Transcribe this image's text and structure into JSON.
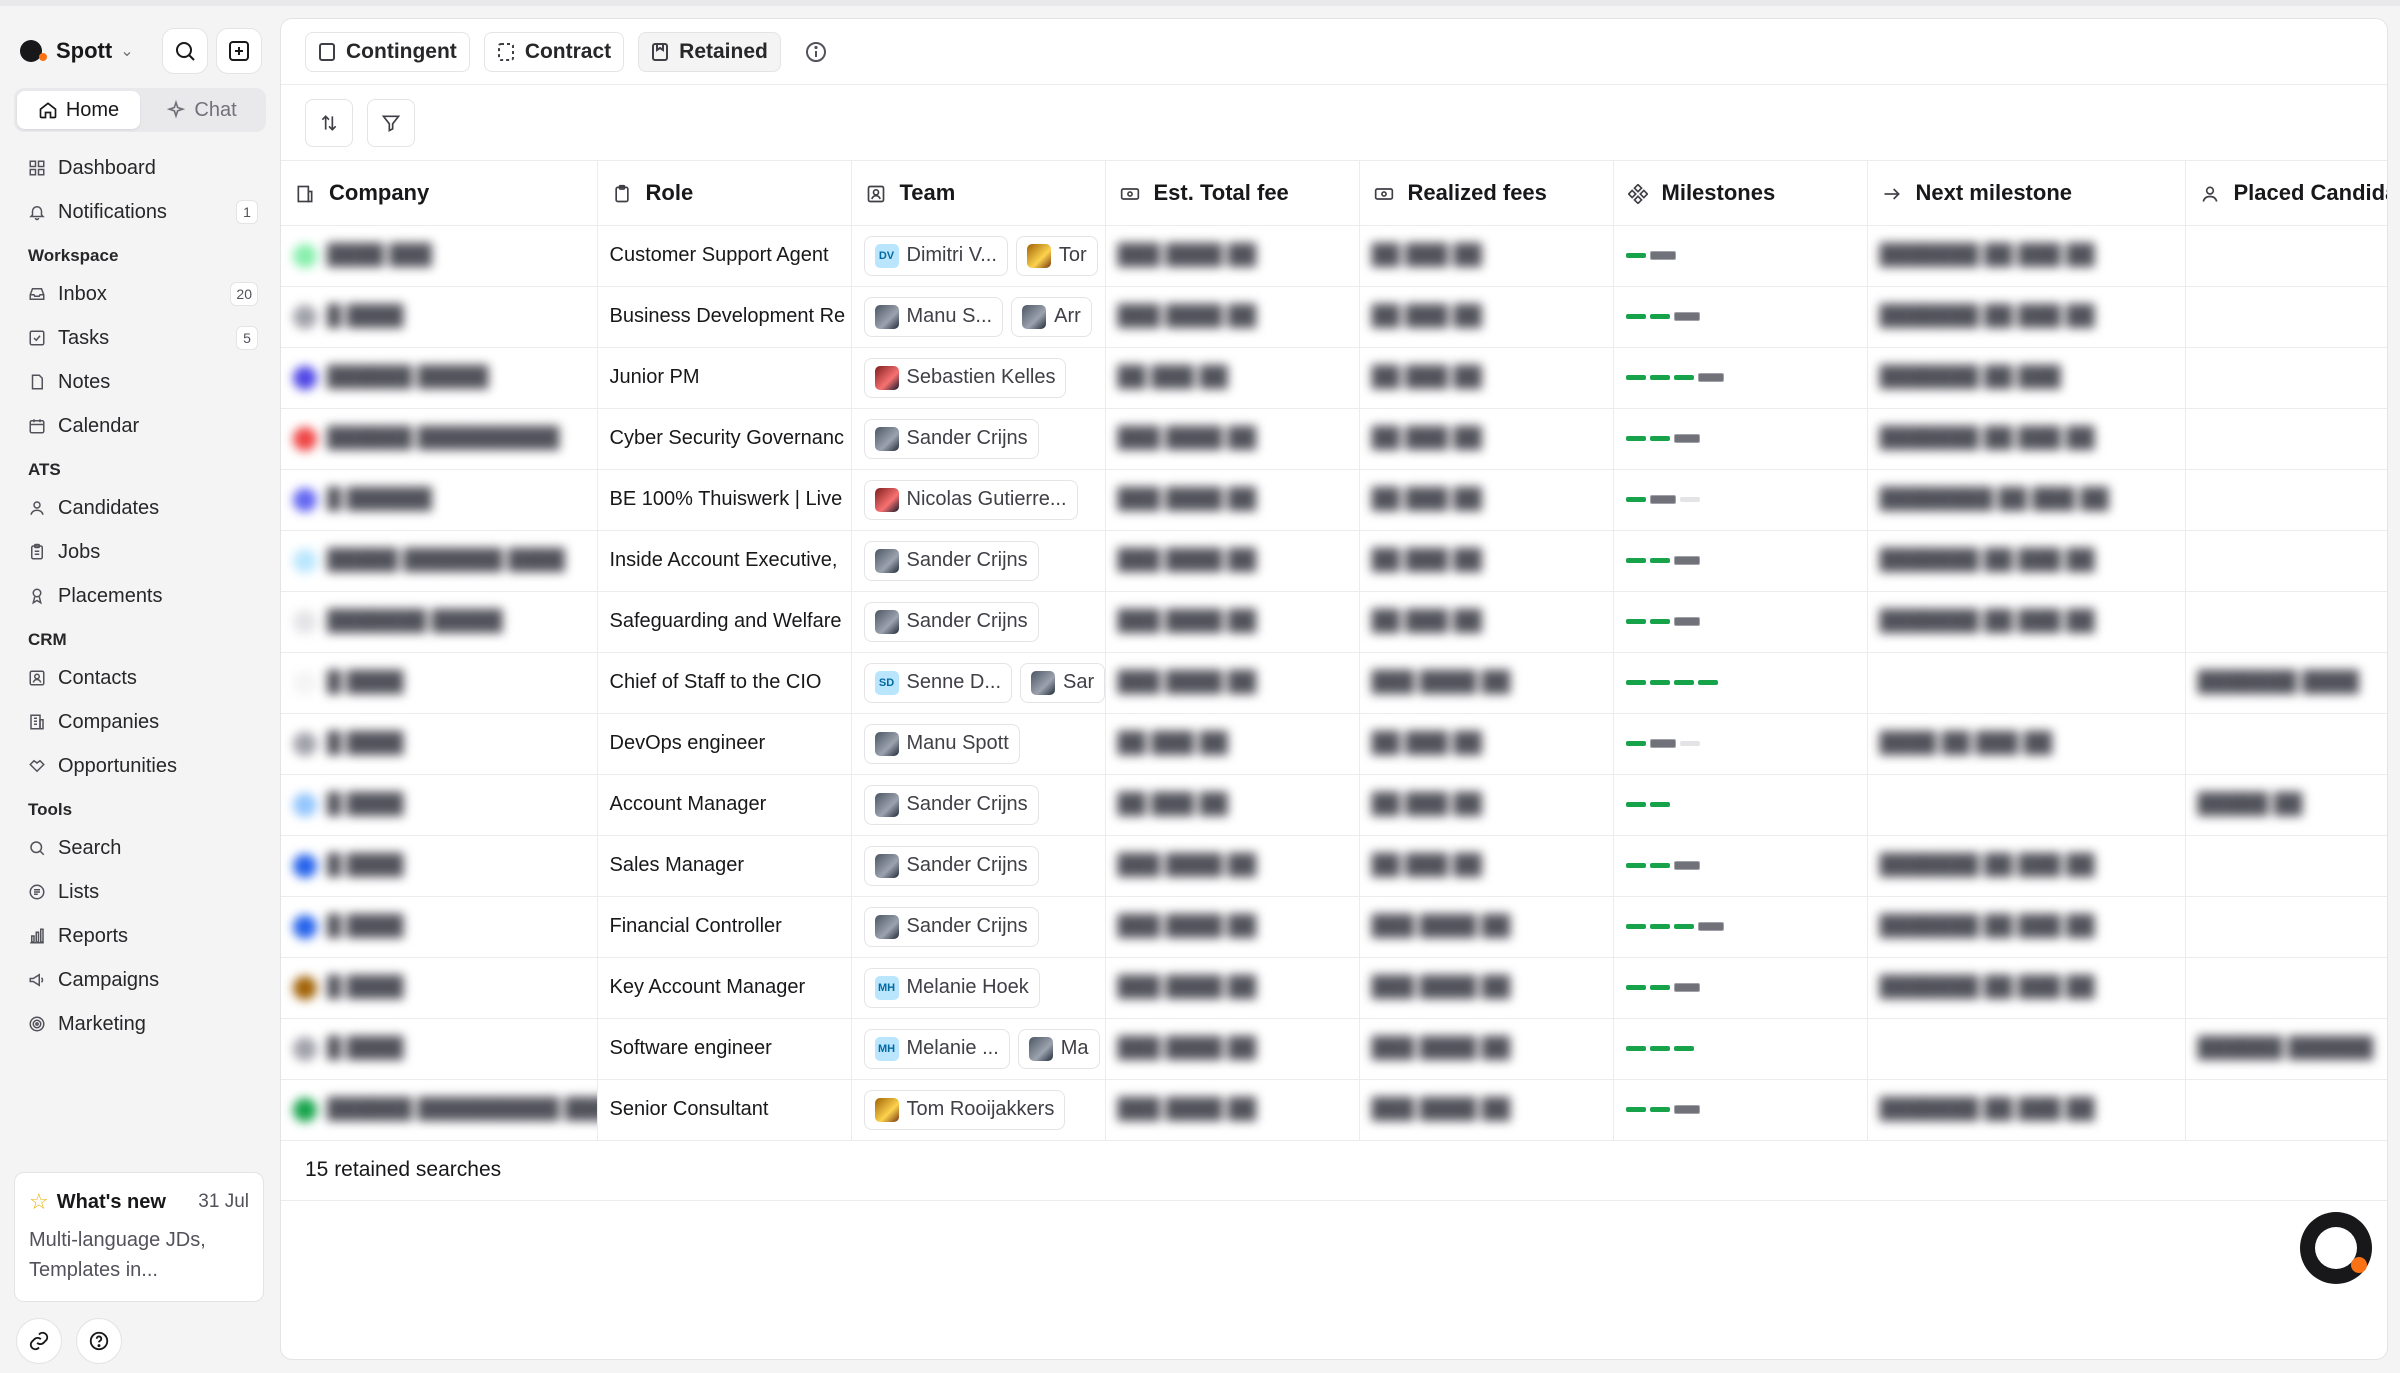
{
  "app": {
    "name": "Spott"
  },
  "sidebar": {
    "mode_tabs": [
      {
        "label": "Home",
        "icon": "home-icon",
        "active": true
      },
      {
        "label": "Chat",
        "icon": "sparkle-icon",
        "active": false
      }
    ],
    "top_items": [
      {
        "label": "Dashboard",
        "icon": "grid-icon"
      },
      {
        "label": "Notifications",
        "icon": "bell-icon",
        "badge": "1"
      }
    ],
    "sections": [
      {
        "title": "Workspace",
        "items": [
          {
            "label": "Inbox",
            "icon": "inbox-icon",
            "badge": "20"
          },
          {
            "label": "Tasks",
            "icon": "checkbox-icon",
            "badge": "5"
          },
          {
            "label": "Notes",
            "icon": "note-icon"
          },
          {
            "label": "Calendar",
            "icon": "calendar-icon"
          }
        ]
      },
      {
        "title": "ATS",
        "items": [
          {
            "label": "Candidates",
            "icon": "user-icon"
          },
          {
            "label": "Jobs",
            "icon": "clipboard-icon"
          },
          {
            "label": "Placements",
            "icon": "award-icon"
          }
        ]
      },
      {
        "title": "CRM",
        "items": [
          {
            "label": "Contacts",
            "icon": "contact-icon"
          },
          {
            "label": "Companies",
            "icon": "building-icon"
          },
          {
            "label": "Opportunities",
            "icon": "handshake-icon"
          }
        ]
      },
      {
        "title": "Tools",
        "items": [
          {
            "label": "Search",
            "icon": "search-icon"
          },
          {
            "label": "Lists",
            "icon": "list-icon"
          },
          {
            "label": "Reports",
            "icon": "chart-icon"
          },
          {
            "label": "Campaigns",
            "icon": "megaphone-icon"
          },
          {
            "label": "Marketing",
            "icon": "target-icon"
          }
        ]
      }
    ],
    "whats_new": {
      "title": "What's new",
      "date": "31 Jul",
      "body": "Multi-language JDs, Templates in..."
    }
  },
  "tabs": [
    {
      "label": "Contingent",
      "icon": "doc-icon",
      "active": false
    },
    {
      "label": "Contract",
      "icon": "dashed-doc-icon",
      "active": false
    },
    {
      "label": "Retained",
      "icon": "bookmark-doc-icon",
      "active": true
    }
  ],
  "table": {
    "columns": [
      {
        "label": "Company",
        "icon": "building-icon"
      },
      {
        "label": "Role",
        "icon": "clipboard-icon"
      },
      {
        "label": "Team",
        "icon": "team-icon"
      },
      {
        "label": "Est. Total fee",
        "icon": "money-icon"
      },
      {
        "label": "Realized fees",
        "icon": "money-icon"
      },
      {
        "label": "Milestones",
        "icon": "milestone-icon"
      },
      {
        "label": "Next milestone",
        "icon": "arrow-right-icon"
      },
      {
        "label": "Placed Candida",
        "icon": "user-icon"
      }
    ],
    "rows": [
      {
        "company": "████ ███",
        "company_color": "#86efac",
        "role": "Customer Support Agent",
        "team": [
          {
            "name": "Dimitri V...",
            "avatar": "DV"
          },
          {
            "name": "Tor",
            "avatar": "photo-warm"
          }
        ],
        "est_fee": "███ ████ ██",
        "realized": "██ ███ ██",
        "done": 1,
        "current": true,
        "empty": 0,
        "next": "███████  ██ ███ ██",
        "placed": ""
      },
      {
        "company": "█ ████",
        "company_color": "#a1a1aa",
        "role": "Business Development Re",
        "team": [
          {
            "name": "Manu S...",
            "avatar": "photo"
          },
          {
            "name": "Arr",
            "avatar": "photo"
          }
        ],
        "est_fee": "███ ████ ██",
        "realized": "██ ███ ██",
        "done": 2,
        "current": true,
        "empty": 0,
        "next": "███████  ██ ███ ██",
        "placed": ""
      },
      {
        "company": "██████ █████",
        "company_color": "#4f46e5",
        "role": "Junior PM",
        "team": [
          {
            "name": "Sebastien Kelles",
            "avatar": "photo-red"
          }
        ],
        "est_fee": "██ ███ ██",
        "realized": "██ ███ ██",
        "done": 3,
        "current": true,
        "empty": 0,
        "next": "███████  ██ ███",
        "placed": ""
      },
      {
        "company": "██████ ██████████",
        "company_color": "#ef4444",
        "role": "Cyber Security Governanc",
        "team": [
          {
            "name": "Sander Crijns",
            "avatar": "photo"
          }
        ],
        "est_fee": "███ ████ ██",
        "realized": "██ ███ ██",
        "done": 2,
        "current": true,
        "empty": 0,
        "next": "███████  ██ ███ ██",
        "placed": ""
      },
      {
        "company": "█ ██████",
        "company_color": "#6366f1",
        "role": "BE 100% Thuiswerk | Live",
        "team": [
          {
            "name": "Nicolas Gutierre...",
            "avatar": "photo-red"
          }
        ],
        "est_fee": "███ ████ ██",
        "realized": "██ ███ ██",
        "done": 1,
        "current": true,
        "empty": 1,
        "next": "████████  ██ ███ ██",
        "placed": ""
      },
      {
        "company": "█████ ███████ ████",
        "company_color": "#bae6fd",
        "role": "Inside Account Executive,",
        "team": [
          {
            "name": "Sander Crijns",
            "avatar": "photo"
          }
        ],
        "est_fee": "███ ████ ██",
        "realized": "██ ███ ██",
        "done": 2,
        "current": true,
        "empty": 0,
        "next": "███████  ██ ███ ██",
        "placed": ""
      },
      {
        "company": "███████ █████",
        "company_color": "#e4e4e7",
        "role": "Safeguarding and Welfare",
        "team": [
          {
            "name": "Sander Crijns",
            "avatar": "photo"
          }
        ],
        "est_fee": "███ ████ ██",
        "realized": "██ ███ ██",
        "done": 2,
        "current": true,
        "empty": 0,
        "next": "███████  ██ ███ ██",
        "placed": ""
      },
      {
        "company": "█ ████",
        "company_color": "#f4f4f5",
        "role": "Chief of Staff to the CIO",
        "team": [
          {
            "name": "Senne D...",
            "avatar": "SD"
          },
          {
            "name": "Sar",
            "avatar": "photo"
          }
        ],
        "est_fee": "███ ████ ██",
        "realized": "███ ████ ██",
        "done": 4,
        "current": false,
        "empty": 0,
        "next": "",
        "placed": "███████ ████"
      },
      {
        "company": "█ ████",
        "company_color": "#a1a1aa",
        "role": "DevOps engineer",
        "team": [
          {
            "name": "Manu Spott",
            "avatar": "photo"
          }
        ],
        "est_fee": "██ ███ ██",
        "realized": "██ ███ ██",
        "done": 1,
        "current": true,
        "empty": 1,
        "next": "████  ██ ███ ██",
        "placed": ""
      },
      {
        "company": "█ ████",
        "company_color": "#93c5fd",
        "role": "Account Manager",
        "team": [
          {
            "name": "Sander Crijns",
            "avatar": "photo"
          }
        ],
        "est_fee": "██ ███ ██",
        "realized": "██ ███ ██",
        "done": 2,
        "current": false,
        "empty": 0,
        "next": "",
        "placed": "█████ ██"
      },
      {
        "company": "█ ████",
        "company_color": "#2563eb",
        "role": "Sales Manager",
        "team": [
          {
            "name": "Sander Crijns",
            "avatar": "photo"
          }
        ],
        "est_fee": "███ ████ ██",
        "realized": "██ ███ ██",
        "done": 2,
        "current": true,
        "empty": 0,
        "next": "███████  ██ ███ ██",
        "placed": ""
      },
      {
        "company": "█ ████",
        "company_color": "#2563eb",
        "role": "Financial Controller",
        "team": [
          {
            "name": "Sander Crijns",
            "avatar": "photo"
          }
        ],
        "est_fee": "███ ████ ██",
        "realized": "███ ████ ██",
        "done": 3,
        "current": true,
        "empty": 0,
        "next": "███████  ██ ███ ██",
        "placed": ""
      },
      {
        "company": "█ ████",
        "company_color": "#a16207",
        "role": "Key Account Manager",
        "team": [
          {
            "name": "Melanie Hoek",
            "avatar": "MH"
          }
        ],
        "est_fee": "███ ████ ██",
        "realized": "███ ████ ██",
        "done": 2,
        "current": true,
        "empty": 0,
        "next": "███████  ██ ███ ██",
        "placed": ""
      },
      {
        "company": "█ ████",
        "company_color": "#a1a1aa",
        "role": "Software engineer",
        "team": [
          {
            "name": "Melanie ...",
            "avatar": "MH"
          },
          {
            "name": "Ma",
            "avatar": "photo"
          }
        ],
        "est_fee": "███ ████ ██",
        "realized": "███ ████ ██",
        "done": 3,
        "current": false,
        "empty": 0,
        "next": "",
        "placed": "██████ ██████"
      },
      {
        "company": "██████ ██████████ ███",
        "company_color": "#16a34a",
        "role": "Senior Consultant",
        "team": [
          {
            "name": "Tom Rooijakkers",
            "avatar": "photo-warm"
          }
        ],
        "est_fee": "███ ████ ██",
        "realized": "███ ████ ██",
        "done": 2,
        "current": true,
        "empty": 0,
        "next": "███████  ██ ███ ██",
        "placed": ""
      }
    ],
    "footer": "15 retained searches"
  },
  "colors": {
    "accent": "#f97316",
    "milestone_done": "#16a34a",
    "text": "#18181b"
  }
}
